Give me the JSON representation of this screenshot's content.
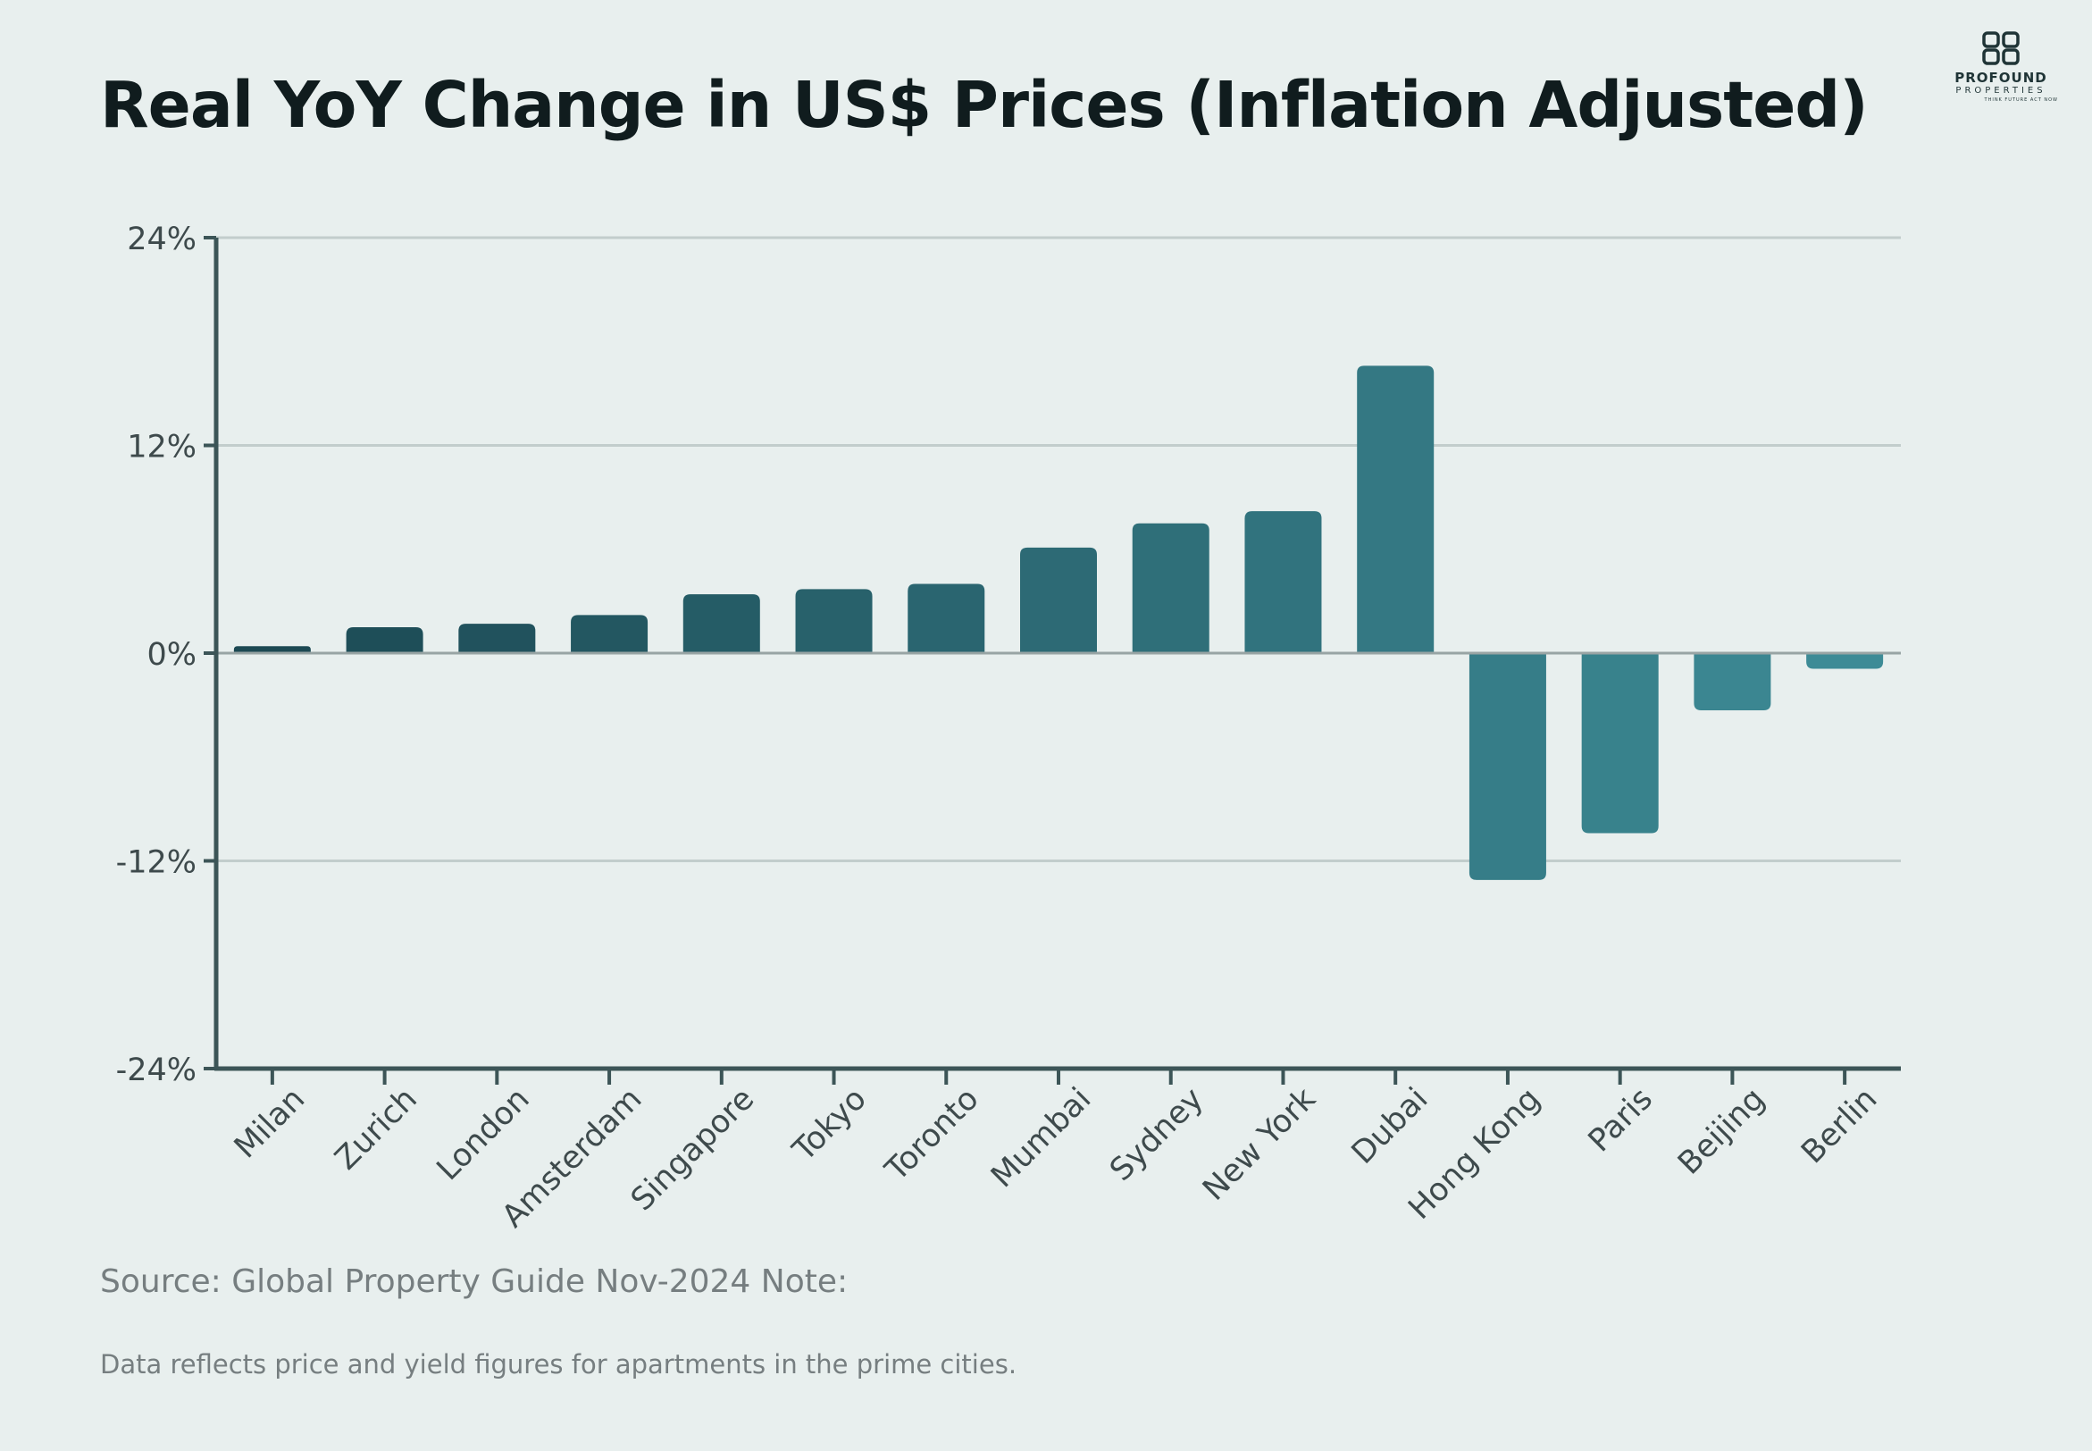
{
  "header": {
    "title": "Real YoY Change in US$ Prices (Inflation Adjusted)"
  },
  "logo": {
    "name": "PROFOUND",
    "sub": "PROPERTIES",
    "tagline": "THINK FUTURE ACT NOW"
  },
  "footer": {
    "source": "Source: Global Property Guide Nov-2024 Note:",
    "note": "Data reflects price and yield figures for apartments in the prime cities."
  },
  "colors": {
    "background": "#e8efee",
    "bar_dark": "#1c4953",
    "bar_light": "#3d8b96",
    "axis": "#3c5557",
    "grid": "#c2cdcc",
    "zero_line": "#98a4a4",
    "tick_text": "#3e4a4c"
  },
  "chart_data": {
    "type": "bar",
    "title": "Real YoY Change in US$ Prices (Inflation Adjusted)",
    "xlabel": "",
    "ylabel": "",
    "ylim": [
      -24,
      24
    ],
    "yticks": [
      24,
      12,
      0,
      -12,
      -24
    ],
    "ytick_labels": [
      "24%",
      "12%",
      "0%",
      "-12%",
      "-24%"
    ],
    "grid": true,
    "categories": [
      "Milan",
      "Zurich",
      "London",
      "Amsterdam",
      "Singapore",
      "Tokyo",
      "Toronto",
      "Mumbai",
      "Sydney",
      "New York",
      "Dubai",
      "Hong Kong",
      "Paris",
      "Beijing",
      "Berlin"
    ],
    "values": [
      0.4,
      1.5,
      1.7,
      2.2,
      3.4,
      3.7,
      4.0,
      6.1,
      7.5,
      8.2,
      16.6,
      -13.1,
      -10.4,
      -3.3,
      -0.9
    ]
  }
}
